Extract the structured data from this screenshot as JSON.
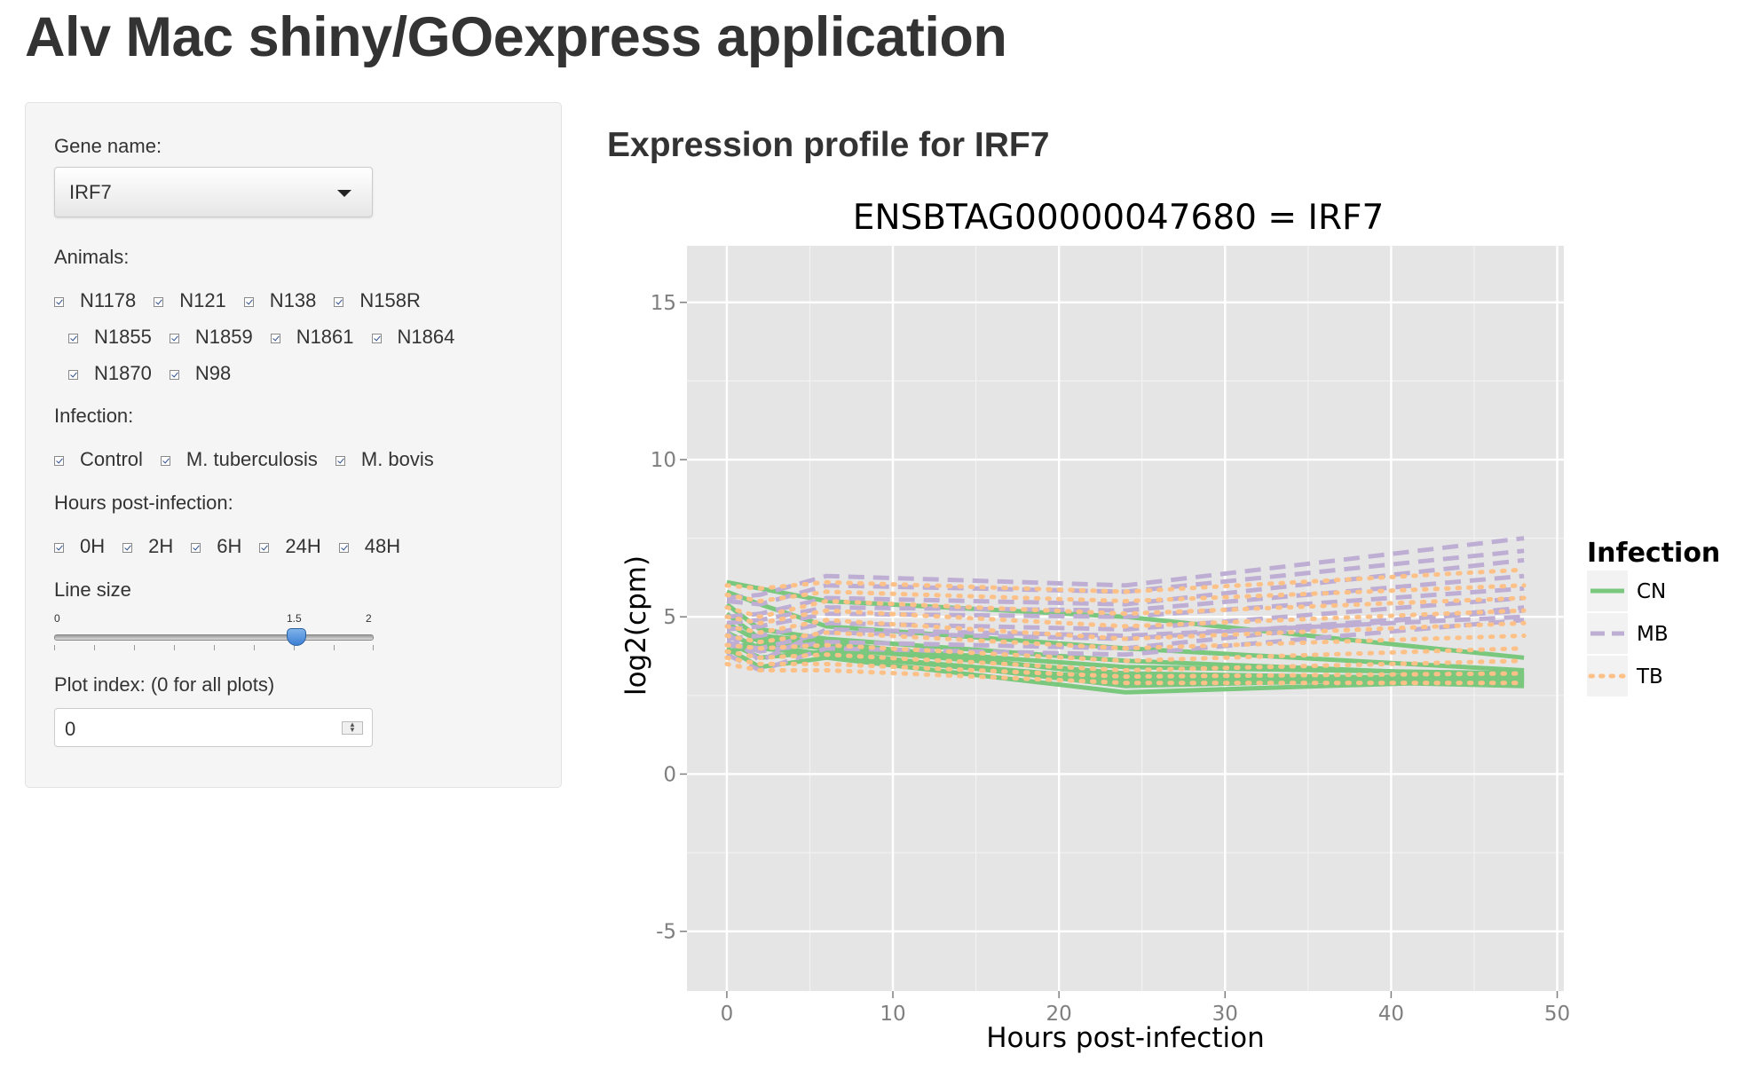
{
  "app": {
    "title": "Alv Mac shiny/GOexpress application"
  },
  "sidebar": {
    "gene": {
      "label": "Gene name:",
      "selected": "IRF7"
    },
    "animals": {
      "label": "Animals:",
      "rows": [
        [
          "N1178",
          "N121",
          "N138",
          "N158R"
        ],
        [
          "N1855",
          "N1859",
          "N1861",
          "N1864"
        ],
        [
          "N1870",
          "N98"
        ]
      ],
      "all_checked": true
    },
    "infection": {
      "label": "Infection:",
      "options": [
        "Control",
        "M. tuberculosis",
        "M. bovis"
      ],
      "all_checked": true
    },
    "hours": {
      "label": "Hours post-infection:",
      "options": [
        "0H",
        "2H",
        "6H",
        "24H",
        "48H"
      ],
      "all_checked": true
    },
    "line_size": {
      "label": "Line size",
      "min": "0",
      "max": "2",
      "value": "1.5"
    },
    "plot_index": {
      "label": "Plot index: (0 for all plots)",
      "value": "0"
    }
  },
  "main": {
    "heading": "Expression profile for IRF7"
  },
  "colors": {
    "CN": "#7ac77e",
    "MB": "#beaed4",
    "TB": "#fdc086",
    "panel": "#e5e5e5"
  },
  "chart_data": {
    "type": "line",
    "title": "ENSBTAG00000047680  =  IRF7",
    "xlabel": "Hours post-infection",
    "ylabel": "log2(cpm)",
    "xlim": [
      -2.4,
      50.4
    ],
    "ylim": [
      -6.9,
      16.8
    ],
    "xticks": [
      0,
      10,
      20,
      30,
      40,
      50
    ],
    "yticks": [
      -5,
      0,
      5,
      10,
      15
    ],
    "grid": true,
    "legend": {
      "title": "Infection",
      "position": "right",
      "entries": [
        "CN",
        "MB",
        "TB"
      ]
    },
    "x": [
      0,
      2,
      6,
      24,
      48
    ],
    "series": [
      {
        "name": "CN",
        "values": [
          6.1,
          5.9,
          5.5,
          5.0,
          3.7
        ]
      },
      {
        "name": "CN",
        "values": [
          5.8,
          5.4,
          4.7,
          4.0,
          3.3
        ]
      },
      {
        "name": "CN",
        "values": [
          5.4,
          4.6,
          4.3,
          3.6,
          3.1
        ]
      },
      {
        "name": "CN",
        "values": [
          5.1,
          4.3,
          4.1,
          3.4,
          3.2
        ]
      },
      {
        "name": "CN",
        "values": [
          4.8,
          4.2,
          4.0,
          3.2,
          3.0
        ]
      },
      {
        "name": "CN",
        "values": [
          4.5,
          4.0,
          3.8,
          3.0,
          2.9
        ]
      },
      {
        "name": "CN",
        "values": [
          4.2,
          3.7,
          3.9,
          2.8,
          3.1
        ]
      },
      {
        "name": "CN",
        "values": [
          4.0,
          3.4,
          3.7,
          2.6,
          3.0
        ]
      },
      {
        "name": "CN",
        "values": [
          3.9,
          4.1,
          3.8,
          2.9,
          3.2
        ]
      },
      {
        "name": "CN",
        "values": [
          3.8,
          4.4,
          4.2,
          3.1,
          2.8
        ]
      },
      {
        "name": "MB",
        "values": [
          5.6,
          5.7,
          6.3,
          6.0,
          7.5
        ]
      },
      {
        "name": "MB",
        "values": [
          5.5,
          5.4,
          6.0,
          5.8,
          7.1
        ]
      },
      {
        "name": "MB",
        "values": [
          5.0,
          5.1,
          5.6,
          5.4,
          6.8
        ]
      },
      {
        "name": "MB",
        "values": [
          4.8,
          4.9,
          5.3,
          5.2,
          6.3
        ]
      },
      {
        "name": "MB",
        "values": [
          4.6,
          4.7,
          5.1,
          5.0,
          5.9
        ]
      },
      {
        "name": "MB",
        "values": [
          4.3,
          4.4,
          4.8,
          4.6,
          5.6
        ]
      },
      {
        "name": "MB",
        "values": [
          4.1,
          4.0,
          4.5,
          4.3,
          5.2
        ]
      },
      {
        "name": "MB",
        "values": [
          3.8,
          3.3,
          4.0,
          3.8,
          4.9
        ]
      },
      {
        "name": "MB",
        "values": [
          4.5,
          3.6,
          4.6,
          4.4,
          5.0
        ]
      },
      {
        "name": "MB",
        "values": [
          4.2,
          3.9,
          4.2,
          4.0,
          5.3
        ]
      },
      {
        "name": "TB",
        "values": [
          6.0,
          5.9,
          6.1,
          5.8,
          6.5
        ]
      },
      {
        "name": "TB",
        "values": [
          5.7,
          5.5,
          5.8,
          5.5,
          6.0
        ]
      },
      {
        "name": "TB",
        "values": [
          5.3,
          5.0,
          5.5,
          5.1,
          5.6
        ]
      },
      {
        "name": "TB",
        "values": [
          5.0,
          4.8,
          5.2,
          4.7,
          5.2
        ]
      },
      {
        "name": "TB",
        "values": [
          4.7,
          4.5,
          4.9,
          4.3,
          4.8
        ]
      },
      {
        "name": "TB",
        "values": [
          4.4,
          4.2,
          4.5,
          4.0,
          4.4
        ]
      },
      {
        "name": "TB",
        "values": [
          4.1,
          4.0,
          4.1,
          3.6,
          4.0
        ]
      },
      {
        "name": "TB",
        "values": [
          3.9,
          3.7,
          3.8,
          3.3,
          3.6
        ]
      },
      {
        "name": "TB",
        "values": [
          3.7,
          3.5,
          3.5,
          3.1,
          3.2
        ]
      },
      {
        "name": "TB",
        "values": [
          3.5,
          3.3,
          3.3,
          2.9,
          2.9
        ]
      }
    ]
  }
}
